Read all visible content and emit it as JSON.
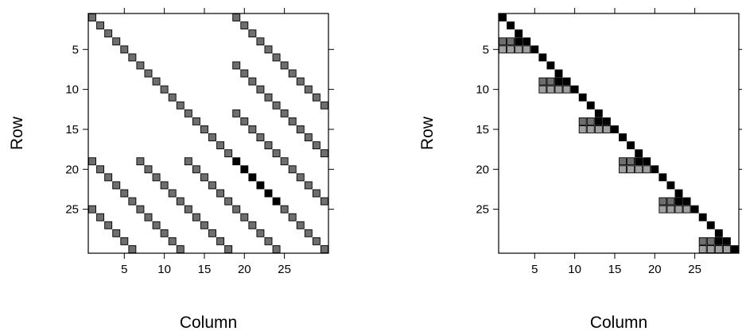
{
  "chart_data": [
    {
      "type": "heatmap",
      "xlabel": "Column",
      "ylabel": "Row",
      "xlim": [
        1,
        30
      ],
      "ylim": [
        30,
        1
      ],
      "x_ticks": [
        5,
        10,
        15,
        20,
        25
      ],
      "y_ticks": [
        5,
        10,
        15,
        20,
        25
      ],
      "grid": false,
      "colors": {
        "light": "#a0a0a0",
        "medium": "#6e6e6e",
        "dark": "#000000"
      },
      "cells": [
        [
          1,
          1,
          "medium"
        ],
        [
          2,
          2,
          "medium"
        ],
        [
          3,
          3,
          "medium"
        ],
        [
          4,
          4,
          "medium"
        ],
        [
          5,
          5,
          "medium"
        ],
        [
          6,
          6,
          "medium"
        ],
        [
          7,
          7,
          "medium"
        ],
        [
          8,
          8,
          "medium"
        ],
        [
          9,
          9,
          "medium"
        ],
        [
          10,
          10,
          "medium"
        ],
        [
          11,
          11,
          "medium"
        ],
        [
          12,
          12,
          "medium"
        ],
        [
          13,
          13,
          "medium"
        ],
        [
          14,
          14,
          "medium"
        ],
        [
          15,
          15,
          "medium"
        ],
        [
          16,
          16,
          "medium"
        ],
        [
          17,
          17,
          "medium"
        ],
        [
          18,
          18,
          "medium"
        ],
        [
          19,
          19,
          "dark"
        ],
        [
          20,
          20,
          "dark"
        ],
        [
          21,
          21,
          "dark"
        ],
        [
          22,
          22,
          "dark"
        ],
        [
          23,
          23,
          "dark"
        ],
        [
          24,
          24,
          "dark"
        ],
        [
          25,
          25,
          "medium"
        ],
        [
          26,
          26,
          "medium"
        ],
        [
          27,
          27,
          "medium"
        ],
        [
          28,
          28,
          "medium"
        ],
        [
          29,
          29,
          "medium"
        ],
        [
          30,
          30,
          "medium"
        ],
        [
          1,
          19,
          "medium"
        ],
        [
          2,
          20,
          "medium"
        ],
        [
          3,
          21,
          "medium"
        ],
        [
          4,
          22,
          "medium"
        ],
        [
          5,
          23,
          "medium"
        ],
        [
          6,
          24,
          "medium"
        ],
        [
          7,
          25,
          "medium"
        ],
        [
          8,
          26,
          "medium"
        ],
        [
          9,
          27,
          "medium"
        ],
        [
          10,
          28,
          "medium"
        ],
        [
          11,
          29,
          "medium"
        ],
        [
          12,
          30,
          "medium"
        ],
        [
          7,
          19,
          "medium"
        ],
        [
          8,
          20,
          "medium"
        ],
        [
          9,
          21,
          "medium"
        ],
        [
          10,
          22,
          "medium"
        ],
        [
          11,
          23,
          "medium"
        ],
        [
          12,
          24,
          "medium"
        ],
        [
          13,
          25,
          "medium"
        ],
        [
          14,
          26,
          "medium"
        ],
        [
          15,
          27,
          "medium"
        ],
        [
          16,
          28,
          "medium"
        ],
        [
          17,
          29,
          "medium"
        ],
        [
          18,
          30,
          "medium"
        ],
        [
          13,
          19,
          "medium"
        ],
        [
          14,
          20,
          "medium"
        ],
        [
          15,
          21,
          "medium"
        ],
        [
          16,
          22,
          "medium"
        ],
        [
          17,
          23,
          "medium"
        ],
        [
          18,
          24,
          "medium"
        ],
        [
          19,
          25,
          "medium"
        ],
        [
          20,
          26,
          "medium"
        ],
        [
          21,
          27,
          "medium"
        ],
        [
          22,
          28,
          "medium"
        ],
        [
          23,
          29,
          "medium"
        ],
        [
          24,
          30,
          "medium"
        ],
        [
          19,
          1,
          "medium"
        ],
        [
          20,
          2,
          "medium"
        ],
        [
          21,
          3,
          "medium"
        ],
        [
          22,
          4,
          "medium"
        ],
        [
          23,
          5,
          "medium"
        ],
        [
          24,
          6,
          "medium"
        ],
        [
          25,
          7,
          "medium"
        ],
        [
          26,
          8,
          "medium"
        ],
        [
          27,
          9,
          "medium"
        ],
        [
          28,
          10,
          "medium"
        ],
        [
          29,
          11,
          "medium"
        ],
        [
          30,
          12,
          "medium"
        ],
        [
          19,
          7,
          "medium"
        ],
        [
          20,
          8,
          "medium"
        ],
        [
          21,
          9,
          "medium"
        ],
        [
          22,
          10,
          "medium"
        ],
        [
          23,
          11,
          "medium"
        ],
        [
          24,
          12,
          "medium"
        ],
        [
          25,
          13,
          "medium"
        ],
        [
          26,
          14,
          "medium"
        ],
        [
          27,
          15,
          "medium"
        ],
        [
          28,
          16,
          "medium"
        ],
        [
          29,
          17,
          "medium"
        ],
        [
          30,
          18,
          "medium"
        ],
        [
          19,
          13,
          "medium"
        ],
        [
          20,
          14,
          "medium"
        ],
        [
          21,
          15,
          "medium"
        ],
        [
          22,
          16,
          "medium"
        ],
        [
          23,
          17,
          "medium"
        ],
        [
          24,
          18,
          "medium"
        ],
        [
          25,
          19,
          "medium"
        ],
        [
          26,
          20,
          "medium"
        ],
        [
          27,
          21,
          "medium"
        ],
        [
          28,
          22,
          "medium"
        ],
        [
          29,
          23,
          "medium"
        ],
        [
          30,
          24,
          "medium"
        ],
        [
          25,
          1,
          "medium"
        ],
        [
          26,
          2,
          "medium"
        ],
        [
          27,
          3,
          "medium"
        ],
        [
          28,
          4,
          "medium"
        ],
        [
          29,
          5,
          "medium"
        ],
        [
          30,
          6,
          "medium"
        ]
      ]
    },
    {
      "type": "heatmap",
      "xlabel": "Column",
      "ylabel": "Row",
      "xlim": [
        1,
        30
      ],
      "ylim": [
        30,
        1
      ],
      "x_ticks": [
        5,
        10,
        15,
        20,
        25
      ],
      "y_ticks": [
        5,
        10,
        15,
        20,
        25
      ],
      "grid": false,
      "colors": {
        "light": "#a0a0a0",
        "medium": "#6e6e6e",
        "dark": "#000000"
      },
      "cells": [
        [
          1,
          1,
          "dark"
        ],
        [
          2,
          2,
          "dark"
        ],
        [
          3,
          3,
          "dark"
        ],
        [
          4,
          4,
          "dark"
        ],
        [
          4,
          1,
          "medium"
        ],
        [
          4,
          2,
          "medium"
        ],
        [
          4,
          3,
          "dark"
        ],
        [
          5,
          5,
          "dark"
        ],
        [
          5,
          1,
          "light"
        ],
        [
          5,
          2,
          "light"
        ],
        [
          5,
          3,
          "light"
        ],
        [
          5,
          4,
          "light"
        ],
        [
          6,
          6,
          "dark"
        ],
        [
          7,
          7,
          "dark"
        ],
        [
          8,
          8,
          "dark"
        ],
        [
          9,
          9,
          "dark"
        ],
        [
          9,
          6,
          "medium"
        ],
        [
          9,
          7,
          "medium"
        ],
        [
          9,
          8,
          "dark"
        ],
        [
          10,
          10,
          "dark"
        ],
        [
          10,
          6,
          "light"
        ],
        [
          10,
          7,
          "light"
        ],
        [
          10,
          8,
          "light"
        ],
        [
          10,
          9,
          "light"
        ],
        [
          11,
          11,
          "dark"
        ],
        [
          12,
          12,
          "dark"
        ],
        [
          13,
          13,
          "dark"
        ],
        [
          14,
          14,
          "dark"
        ],
        [
          14,
          11,
          "medium"
        ],
        [
          14,
          12,
          "medium"
        ],
        [
          14,
          13,
          "dark"
        ],
        [
          15,
          15,
          "dark"
        ],
        [
          15,
          11,
          "light"
        ],
        [
          15,
          12,
          "light"
        ],
        [
          15,
          13,
          "light"
        ],
        [
          15,
          14,
          "light"
        ],
        [
          16,
          16,
          "dark"
        ],
        [
          17,
          17,
          "dark"
        ],
        [
          18,
          18,
          "dark"
        ],
        [
          19,
          19,
          "dark"
        ],
        [
          19,
          16,
          "medium"
        ],
        [
          19,
          17,
          "medium"
        ],
        [
          19,
          18,
          "dark"
        ],
        [
          20,
          20,
          "dark"
        ],
        [
          20,
          16,
          "light"
        ],
        [
          20,
          17,
          "light"
        ],
        [
          20,
          18,
          "light"
        ],
        [
          20,
          19,
          "light"
        ],
        [
          21,
          21,
          "dark"
        ],
        [
          22,
          22,
          "dark"
        ],
        [
          23,
          23,
          "dark"
        ],
        [
          24,
          24,
          "dark"
        ],
        [
          24,
          21,
          "medium"
        ],
        [
          24,
          22,
          "medium"
        ],
        [
          24,
          23,
          "dark"
        ],
        [
          25,
          25,
          "dark"
        ],
        [
          25,
          21,
          "light"
        ],
        [
          25,
          22,
          "light"
        ],
        [
          25,
          23,
          "light"
        ],
        [
          25,
          24,
          "light"
        ],
        [
          26,
          26,
          "dark"
        ],
        [
          27,
          27,
          "dark"
        ],
        [
          28,
          28,
          "dark"
        ],
        [
          29,
          29,
          "dark"
        ],
        [
          29,
          26,
          "medium"
        ],
        [
          29,
          27,
          "medium"
        ],
        [
          29,
          28,
          "dark"
        ],
        [
          30,
          30,
          "dark"
        ],
        [
          30,
          26,
          "light"
        ],
        [
          30,
          27,
          "light"
        ],
        [
          30,
          28,
          "light"
        ],
        [
          30,
          29,
          "light"
        ]
      ]
    }
  ]
}
